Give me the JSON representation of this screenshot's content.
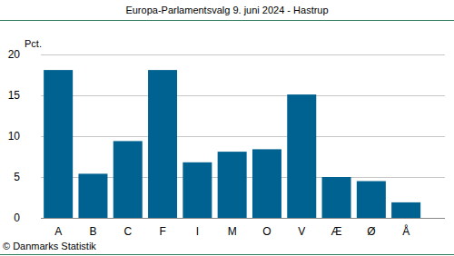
{
  "chart_data": {
    "type": "bar",
    "title": "Europa-Parlamentsvalg 9. juni 2024 - Hastrup",
    "y_label": "Pct.",
    "source": "© Danmarks Statistik",
    "categories": [
      "A",
      "B",
      "C",
      "F",
      "I",
      "M",
      "O",
      "V",
      "Æ",
      "Ø",
      "Å"
    ],
    "values": [
      18.1,
      5.4,
      9.4,
      18.1,
      6.8,
      8.1,
      8.4,
      15.1,
      5.0,
      4.5,
      1.9
    ],
    "color": "#006290",
    "ylim": [
      0,
      20
    ],
    "yticks": [
      0,
      5,
      10,
      15,
      20
    ],
    "grid": true
  }
}
